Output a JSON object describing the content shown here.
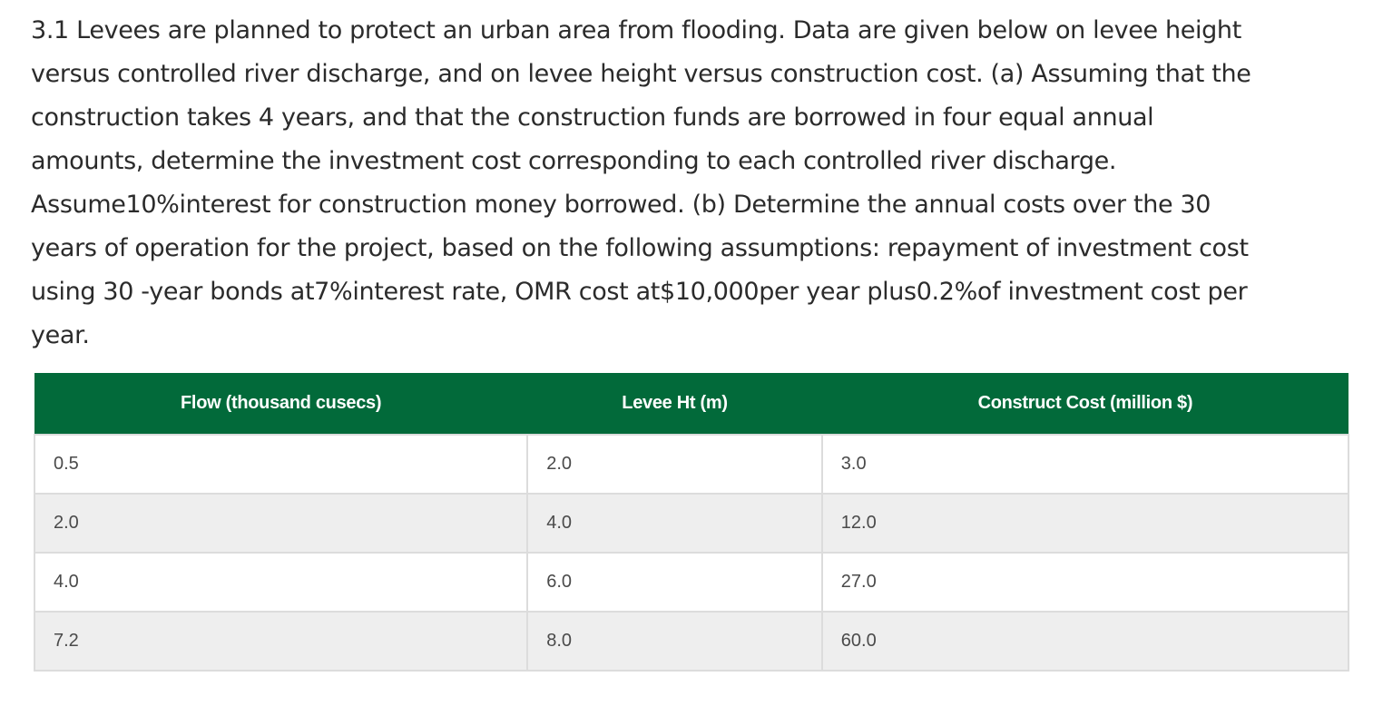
{
  "problem": {
    "lines": [
      "3.1 Levees are planned to protect an urban area from flooding. Data are given below on levee height",
      "versus controlled river discharge, and on levee height versus construction cost. (a) Assuming that the",
      "construction takes 4 years, and that the construction funds are borrowed in four equal annual",
      "amounts, determine the investment cost corresponding to each controlled river discharge.",
      "Assume10%interest for construction money borrowed. (b) Determine the annual costs over the 30",
      "years of operation for the project, based on the following assumptions: repayment of investment cost",
      "using 30 -year bonds at7%interest rate, OMR cost at$10,000per year plus0.2%of investment cost per",
      "year."
    ]
  },
  "table": {
    "headers": [
      "Flow (thousand cusecs)",
      "Levee Ht (m)",
      "Construct Cost (million $)"
    ],
    "rows": [
      [
        "0.5",
        "2.0",
        "3.0"
      ],
      [
        "2.0",
        "4.0",
        "12.0"
      ],
      [
        "4.0",
        "6.0",
        "27.0"
      ],
      [
        "7.2",
        "8.0",
        "60.0"
      ]
    ],
    "header_color": "#026a3a"
  }
}
